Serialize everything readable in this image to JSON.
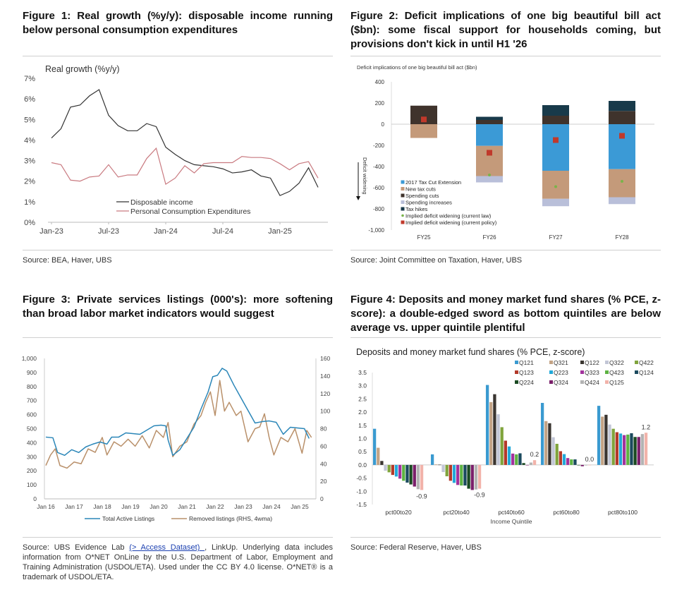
{
  "figures": [
    {
      "title": "Figure 1: Real growth (%y/y): disposable income running below personal consumption expenditures",
      "source": "Source: BEA, Haver, UBS"
    },
    {
      "title": "Figure 2: Deficit implications of one big beautiful bill act ($bn): some fiscal support for households coming, but provisions don't kick in until H1 '26",
      "source": "Source: Joint Committee on Taxation, Haver, UBS"
    },
    {
      "title": "Figure 3: Private services listings (000's): more softening than broad labor market indicators would suggest",
      "source_prefix": "Source: UBS Evidence Lab ",
      "source_link": "(> Access Dataset) ",
      "source_suffix": ", LinkUp. Underlying data includes information from O*NET OnLine by the U.S. Department of Labor, Employment and Training Administration (USDOL/ETA). Used under the CC BY 4.0 license. O*NET® is a trademark of USDOL/ETA."
    },
    {
      "title": "Figure 4: Deposits and money market fund shares (% PCE, z-score): a double-edged sword as bottom quintiles are below average vs. upper quintile plentiful",
      "source": "Source: Federal Reserve, Haver, UBS"
    }
  ],
  "chart_data": [
    {
      "type": "line",
      "title": "Real growth (%y/y)",
      "x_tick_labels": [
        "Jan-23",
        "Jul-23",
        "Jan-24",
        "Jul-24",
        "Jan-25"
      ],
      "y_tick_labels": [
        "0%",
        "1%",
        "2%",
        "3%",
        "4%",
        "5%",
        "6%",
        "7%"
      ],
      "ylim": [
        0,
        7
      ],
      "x_start": "2023-01",
      "x_frequency": "monthly",
      "legend": "bottom-center",
      "grid": false,
      "series": [
        {
          "name": "Disposable income",
          "color": "#333333",
          "values": [
            4.1,
            4.55,
            5.6,
            5.7,
            6.15,
            6.45,
            5.2,
            4.7,
            4.45,
            4.45,
            4.8,
            4.65,
            3.65,
            3.3,
            3.0,
            2.8,
            2.75,
            2.7,
            2.6,
            2.4,
            2.45,
            2.55,
            2.25,
            2.15,
            1.3,
            1.5,
            1.9,
            2.65,
            1.7
          ]
        },
        {
          "name": "Personal Consumption Expenditures",
          "color": "#c97a80",
          "values": [
            2.9,
            2.8,
            2.05,
            2.0,
            2.2,
            2.25,
            2.8,
            2.2,
            2.3,
            2.3,
            3.1,
            3.6,
            1.85,
            2.15,
            2.75,
            2.4,
            2.85,
            2.9,
            2.9,
            2.9,
            3.2,
            3.15,
            3.15,
            3.1,
            2.85,
            2.55,
            2.85,
            2.95,
            2.15
          ]
        }
      ]
    },
    {
      "type": "bar",
      "stacked": true,
      "title": "Deficit implications of one big beautiful bill act ($bn)",
      "ylabel": "Deficit widening",
      "categories": [
        "FY25",
        "FY26",
        "FY27",
        "FY28"
      ],
      "ylim": [
        -1000,
        400
      ],
      "y_tick_labels": [
        "-1,000",
        "-800",
        "-600",
        "-400",
        "-200",
        "0",
        "200",
        "400"
      ],
      "legend": "bottom-left",
      "series": [
        {
          "name": "2017 Tax Cut Extension",
          "color": "#3b9ad6",
          "values": [
            0,
            -205,
            -440,
            -425
          ]
        },
        {
          "name": "New tax cuts",
          "color": "#c49a7a",
          "values": [
            -130,
            -285,
            -265,
            -265
          ]
        },
        {
          "name": "Spending cuts",
          "color": "#3f332c",
          "values": [
            175,
            40,
            80,
            125
          ]
        },
        {
          "name": "Spending increases",
          "color": "#b9bfd9",
          "values": [
            0,
            -60,
            -70,
            -65
          ]
        },
        {
          "name": "Tax hikes",
          "color": "#183a4a",
          "values": [
            0,
            30,
            100,
            95
          ]
        }
      ],
      "markers": [
        {
          "name": "Implied deficit widening (current law)",
          "color": "#7ab34a",
          "shape": "circle",
          "values": [
            null,
            -480,
            -590,
            -540
          ]
        },
        {
          "name": "Implied deficit widening  (current policy)",
          "color": "#c0392b",
          "shape": "square",
          "values": [
            45,
            -270,
            -150,
            -110
          ]
        }
      ]
    },
    {
      "type": "line",
      "x_tick_labels": [
        "Jan 16",
        "Jan 17",
        "Jan 18",
        "Jan 19",
        "Jan 20",
        "Jan 21",
        "Jan 22",
        "Jan 23",
        "Jan 24",
        "Jan 25"
      ],
      "y_tick_labels": [
        "0",
        "100",
        "200",
        "300",
        "400",
        "500",
        "600",
        "700",
        "800",
        "900",
        "1,000"
      ],
      "y2_tick_labels": [
        "0",
        "20",
        "40",
        "60",
        "80",
        "100",
        "120",
        "140",
        "160"
      ],
      "ylim": [
        0,
        1000
      ],
      "y2lim": [
        0,
        160
      ],
      "legend": "bottom-center",
      "series": [
        {
          "name": "Total Active Listings",
          "color": "#2a86b8",
          "axis": "left",
          "points": [
            [
              "2016-01",
              440
            ],
            [
              "2016-04",
              435
            ],
            [
              "2016-06",
              330
            ],
            [
              "2016-09",
              310
            ],
            [
              "2016-12",
              350
            ],
            [
              "2017-03",
              330
            ],
            [
              "2017-06",
              370
            ],
            [
              "2017-09",
              390
            ],
            [
              "2017-12",
              405
            ],
            [
              "2018-03",
              390
            ],
            [
              "2018-05",
              440
            ],
            [
              "2018-08",
              440
            ],
            [
              "2018-11",
              470
            ],
            [
              "2019-02",
              465
            ],
            [
              "2019-05",
              460
            ],
            [
              "2019-08",
              490
            ],
            [
              "2019-11",
              520
            ],
            [
              "2020-02",
              525
            ],
            [
              "2020-04",
              520
            ],
            [
              "2020-05",
              420
            ],
            [
              "2020-07",
              310
            ],
            [
              "2020-10",
              350
            ],
            [
              "2021-01",
              430
            ],
            [
              "2021-04",
              510
            ],
            [
              "2021-07",
              640
            ],
            [
              "2021-10",
              760
            ],
            [
              "2021-12",
              870
            ],
            [
              "2022-02",
              880
            ],
            [
              "2022-04",
              930
            ],
            [
              "2022-06",
              910
            ],
            [
              "2022-09",
              810
            ],
            [
              "2022-12",
              720
            ],
            [
              "2023-03",
              630
            ],
            [
              "2023-06",
              540
            ],
            [
              "2023-09",
              550
            ],
            [
              "2023-12",
              555
            ],
            [
              "2024-03",
              545
            ],
            [
              "2024-06",
              460
            ],
            [
              "2024-09",
              510
            ],
            [
              "2024-12",
              505
            ],
            [
              "2025-03",
              500
            ],
            [
              "2025-05",
              430
            ]
          ]
        },
        {
          "name": "Removed listings (RHS, 4wma)",
          "color": "#b9906a",
          "axis": "right",
          "points": [
            [
              "2016-01",
              38
            ],
            [
              "2016-03",
              50
            ],
            [
              "2016-05",
              57
            ],
            [
              "2016-07",
              38
            ],
            [
              "2016-10",
              35
            ],
            [
              "2017-01",
              42
            ],
            [
              "2017-04",
              40
            ],
            [
              "2017-07",
              57
            ],
            [
              "2017-10",
              53
            ],
            [
              "2018-01",
              70
            ],
            [
              "2018-03",
              50
            ],
            [
              "2018-06",
              65
            ],
            [
              "2018-09",
              60
            ],
            [
              "2018-12",
              68
            ],
            [
              "2019-03",
              60
            ],
            [
              "2019-06",
              72
            ],
            [
              "2019-09",
              58
            ],
            [
              "2019-12",
              78
            ],
            [
              "2020-03",
              70
            ],
            [
              "2020-05",
              87
            ],
            [
              "2020-07",
              48
            ],
            [
              "2020-10",
              60
            ],
            [
              "2021-01",
              65
            ],
            [
              "2021-04",
              85
            ],
            [
              "2021-07",
              95
            ],
            [
              "2021-09",
              110
            ],
            [
              "2021-11",
              122
            ],
            [
              "2022-01",
              95
            ],
            [
              "2022-03",
              135
            ],
            [
              "2022-05",
              100
            ],
            [
              "2022-07",
              110
            ],
            [
              "2022-10",
              95
            ],
            [
              "2022-12",
              100
            ],
            [
              "2023-03",
              65
            ],
            [
              "2023-06",
              80
            ],
            [
              "2023-08",
              82
            ],
            [
              "2023-10",
              97
            ],
            [
              "2023-12",
              70
            ],
            [
              "2024-02",
              50
            ],
            [
              "2024-05",
              70
            ],
            [
              "2024-08",
              65
            ],
            [
              "2024-11",
              80
            ],
            [
              "2025-02",
              52
            ],
            [
              "2025-04",
              78
            ],
            [
              "2025-06",
              70
            ]
          ]
        }
      ]
    },
    {
      "type": "bar",
      "title": "Deposits and money market fund shares (% PCE, z-score)",
      "xlabel": "Income Quintile",
      "categories": [
        "pct00to20",
        "pct20to40",
        "pct40to60",
        "pct60to80",
        "pct80to100"
      ],
      "ylim": [
        -1.5,
        3.5
      ],
      "y_tick_labels": [
        "-1.5",
        "-1.0",
        "-0.5",
        "0.0",
        "0.5",
        "1.0",
        "1.5",
        "2.0",
        "2.5",
        "3.0",
        "3.5"
      ],
      "legend": "top-right",
      "data_labels": [
        "-0.9",
        "-0.9",
        "0.2",
        "0.0",
        "1.2"
      ],
      "series": [
        {
          "name": "Q121",
          "color": "#3a9ad0",
          "values": [
            1.37,
            0.4,
            3.03,
            2.35,
            2.24
          ]
        },
        {
          "name": "Q321",
          "color": "#c3a385",
          "values": [
            0.65,
            0.02,
            2.38,
            1.66,
            1.83
          ]
        },
        {
          "name": "Q122",
          "color": "#3a3530",
          "values": [
            0.15,
            0.01,
            2.68,
            1.58,
            1.9
          ]
        },
        {
          "name": "Q322",
          "color": "#c2c6d6",
          "values": [
            -0.22,
            -0.27,
            1.92,
            1.05,
            1.53
          ]
        },
        {
          "name": "Q422",
          "color": "#80a43c",
          "values": [
            -0.28,
            -0.43,
            1.43,
            0.8,
            1.37
          ]
        },
        {
          "name": "Q123",
          "color": "#b33a2a",
          "values": [
            -0.38,
            -0.6,
            0.92,
            0.52,
            1.24
          ]
        },
        {
          "name": "Q223",
          "color": "#22a9d9",
          "values": [
            -0.44,
            -0.68,
            0.7,
            0.41,
            1.19
          ]
        },
        {
          "name": "Q323",
          "color": "#a2329c",
          "values": [
            -0.52,
            -0.76,
            0.43,
            0.26,
            1.13
          ]
        },
        {
          "name": "Q423",
          "color": "#5db342",
          "values": [
            -0.6,
            -0.78,
            0.4,
            0.21,
            1.15
          ]
        },
        {
          "name": "Q124",
          "color": "#1b4a5e",
          "values": [
            -0.67,
            -0.78,
            0.44,
            0.21,
            1.2
          ]
        },
        {
          "name": "Q224",
          "color": "#1a4a22",
          "values": [
            -0.74,
            -0.9,
            0.07,
            0.0,
            1.06
          ]
        },
        {
          "name": "Q324",
          "color": "#7a1f6a",
          "values": [
            -0.82,
            -0.95,
            0.0,
            -0.05,
            1.06
          ]
        },
        {
          "name": "Q424",
          "color": "#b3b3b3",
          "values": [
            -0.92,
            -0.93,
            0.09,
            -0.02,
            1.17
          ]
        },
        {
          "name": "Q125",
          "color": "#f2b3aa",
          "values": [
            -0.95,
            -0.9,
            0.18,
            0.0,
            1.22
          ]
        }
      ]
    }
  ]
}
